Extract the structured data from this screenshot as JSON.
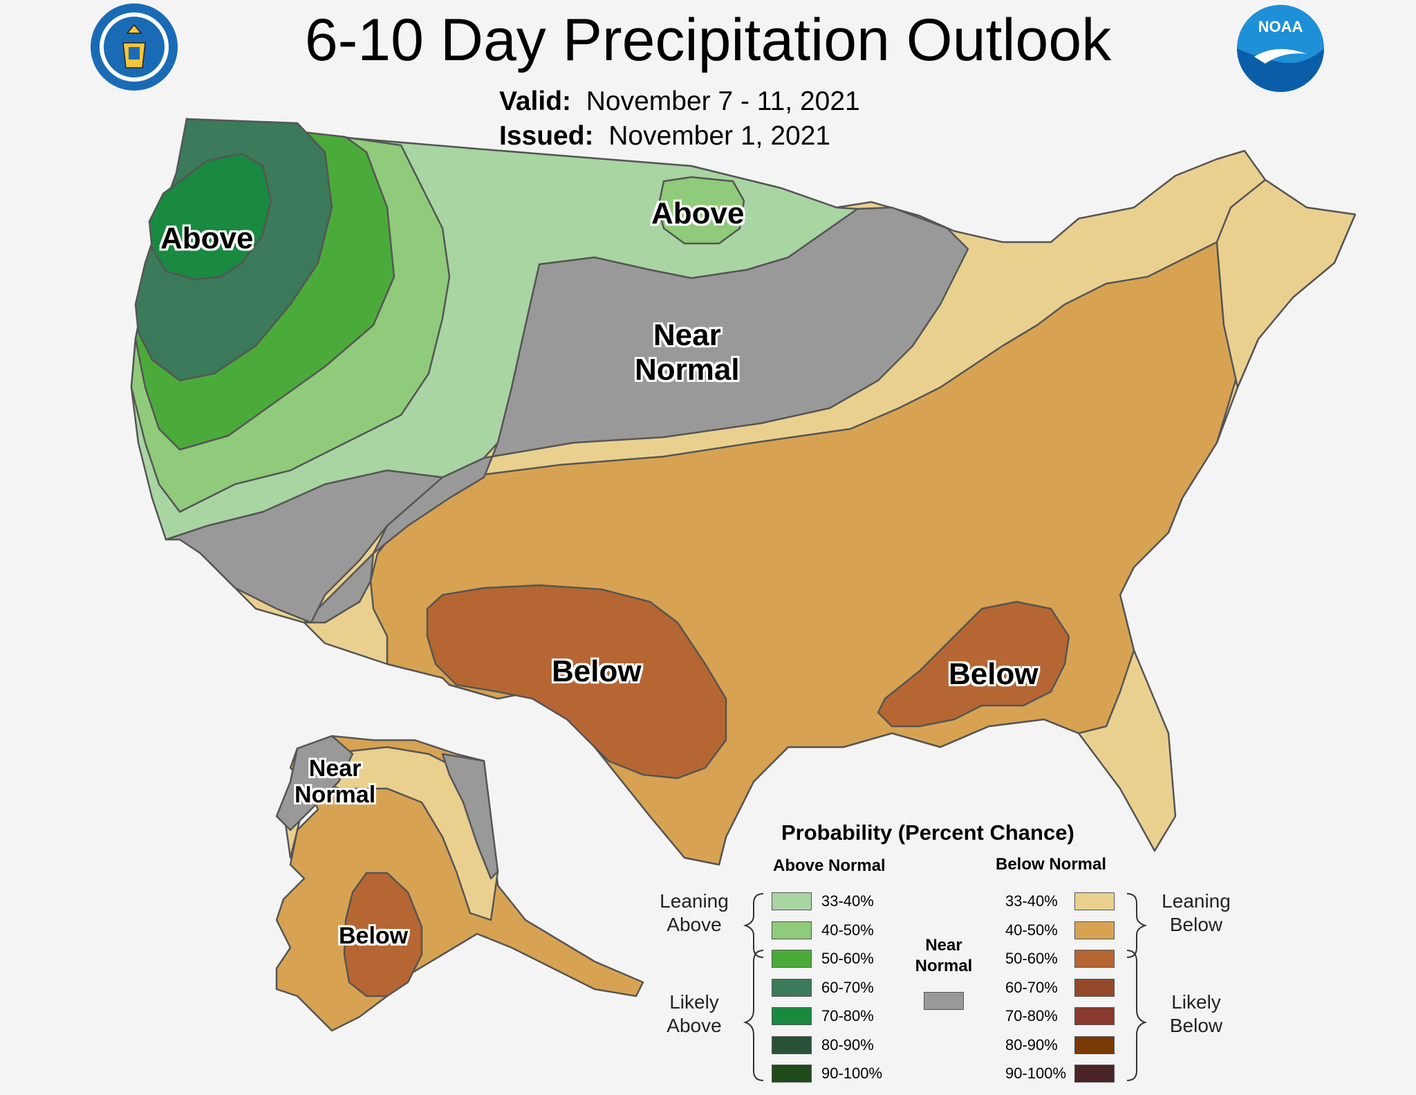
{
  "header": {
    "title": "6-10 Day Precipitation Outlook",
    "valid_label": "Valid:",
    "valid_value": "November 7 - 11, 2021",
    "issued_label": "Issued:",
    "issued_value": "November 1, 2021"
  },
  "logos": {
    "commerce_seal": "department-of-commerce-seal",
    "noaa_logo_text": "NOAA"
  },
  "map_labels": {
    "pacific_nw": "Above",
    "northern_plains": "Above",
    "central": [
      "Near",
      "Normal"
    ],
    "southwest": "Below",
    "southeast": "Below",
    "alaska_north": [
      "Near",
      "Normal"
    ],
    "alaska_south": "Below"
  },
  "legend": {
    "title": "Probability (Percent Chance)",
    "above_head": "Above Normal",
    "below_head": "Below Normal",
    "near_normal_head": [
      "Near",
      "Normal"
    ],
    "leaning_above": [
      "Leaning",
      "Above"
    ],
    "likely_above": [
      "Likely",
      "Above"
    ],
    "leaning_below": [
      "Leaning",
      "Below"
    ],
    "likely_below": [
      "Likely",
      "Below"
    ],
    "above": [
      {
        "label": "33-40%",
        "color": "#a8d5a2"
      },
      {
        "label": "40-50%",
        "color": "#8fcb7a"
      },
      {
        "label": "50-60%",
        "color": "#4aab3a"
      },
      {
        "label": "60-70%",
        "color": "#3b7a5a"
      },
      {
        "label": "70-80%",
        "color": "#198a3f"
      },
      {
        "label": "80-90%",
        "color": "#285238"
      },
      {
        "label": "90-100%",
        "color": "#1f4a1a"
      }
    ],
    "below": [
      {
        "label": "33-40%",
        "color": "#ead08f"
      },
      {
        "label": "40-50%",
        "color": "#d7a352"
      },
      {
        "label": "50-60%",
        "color": "#b66633"
      },
      {
        "label": "60-70%",
        "color": "#94482a"
      },
      {
        "label": "70-80%",
        "color": "#8a3a2e"
      },
      {
        "label": "80-90%",
        "color": "#7a3a06"
      },
      {
        "label": "90-100%",
        "color": "#4a2426"
      }
    ],
    "near_normal_color": "#999999"
  }
}
